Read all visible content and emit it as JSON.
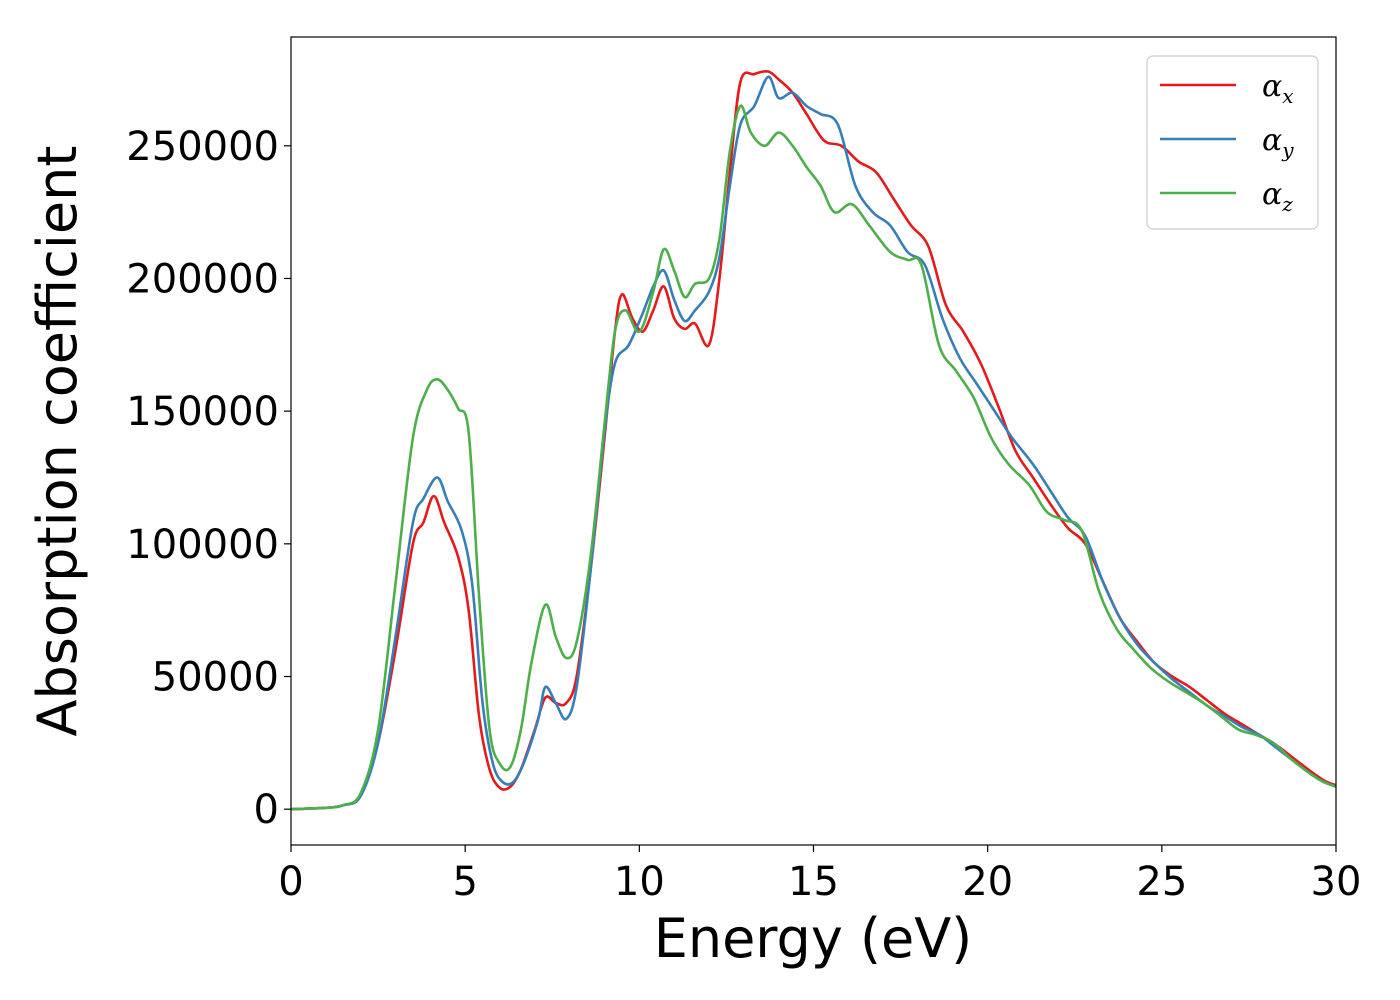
{
  "chart_data": {
    "type": "line",
    "xlabel": "Energy (eV)",
    "ylabel": "Absorption coefficient",
    "xlim": [
      0,
      30
    ],
    "ylim": [
      -13500,
      291000
    ],
    "xticks": [
      0,
      5,
      10,
      15,
      20,
      25,
      30
    ],
    "xtick_labels": [
      "0",
      "5",
      "10",
      "15",
      "20",
      "25",
      "30"
    ],
    "yticks": [
      0,
      50000,
      100000,
      150000,
      200000,
      250000
    ],
    "ytick_labels": [
      "0",
      "50000",
      "100000",
      "150000",
      "200000",
      "250000"
    ],
    "grid": false,
    "legend_position": "top-right",
    "series": [
      {
        "name": "α",
        "subscript": "x",
        "color": "#e41a1c",
        "points": [
          [
            0,
            0
          ],
          [
            1,
            500
          ],
          [
            1.5,
            1500
          ],
          [
            2,
            5000
          ],
          [
            2.5,
            25000
          ],
          [
            3,
            60000
          ],
          [
            3.5,
            100000
          ],
          [
            3.8,
            108000
          ],
          [
            4.1,
            118000
          ],
          [
            4.4,
            108000
          ],
          [
            4.8,
            95000
          ],
          [
            5.1,
            75000
          ],
          [
            5.4,
            35000
          ],
          [
            5.7,
            15000
          ],
          [
            6,
            8000
          ],
          [
            6.3,
            8500
          ],
          [
            6.6,
            15000
          ],
          [
            7,
            30000
          ],
          [
            7.3,
            42000
          ],
          [
            7.6,
            40000
          ],
          [
            7.9,
            40000
          ],
          [
            8.2,
            50000
          ],
          [
            8.6,
            90000
          ],
          [
            9,
            140000
          ],
          [
            9.3,
            180000
          ],
          [
            9.5,
            194000
          ],
          [
            9.8,
            185000
          ],
          [
            10.1,
            180000
          ],
          [
            10.4,
            188000
          ],
          [
            10.7,
            197000
          ],
          [
            11,
            185000
          ],
          [
            11.3,
            181000
          ],
          [
            11.6,
            183000
          ],
          [
            12,
            175000
          ],
          [
            12.3,
            200000
          ],
          [
            12.6,
            240000
          ],
          [
            12.9,
            274000
          ],
          [
            13.3,
            277000
          ],
          [
            13.7,
            278000
          ],
          [
            14,
            275000
          ],
          [
            14.4,
            270000
          ],
          [
            14.8,
            262000
          ],
          [
            15.3,
            252000
          ],
          [
            15.8,
            250000
          ],
          [
            16.3,
            244000
          ],
          [
            16.8,
            240000
          ],
          [
            17.3,
            230000
          ],
          [
            17.8,
            220000
          ],
          [
            18.3,
            212000
          ],
          [
            18.8,
            190000
          ],
          [
            19.3,
            180000
          ],
          [
            19.8,
            168000
          ],
          [
            20.3,
            152000
          ],
          [
            20.8,
            135000
          ],
          [
            21.3,
            125000
          ],
          [
            21.8,
            115000
          ],
          [
            22.3,
            106000
          ],
          [
            22.8,
            100000
          ],
          [
            23.3,
            86000
          ],
          [
            23.8,
            72000
          ],
          [
            24.3,
            63000
          ],
          [
            24.8,
            55000
          ],
          [
            25.3,
            50000
          ],
          [
            25.8,
            46000
          ],
          [
            26.3,
            41000
          ],
          [
            26.8,
            36000
          ],
          [
            27.3,
            32000
          ],
          [
            27.8,
            28000
          ],
          [
            28.3,
            24000
          ],
          [
            28.8,
            19000
          ],
          [
            29.3,
            14000
          ],
          [
            29.7,
            10500
          ],
          [
            30,
            9000
          ]
        ]
      },
      {
        "name": "α",
        "subscript": "y",
        "color": "#377eb8",
        "points": [
          [
            0,
            0
          ],
          [
            1,
            500
          ],
          [
            1.5,
            1500
          ],
          [
            2,
            5000
          ],
          [
            2.5,
            25000
          ],
          [
            3,
            65000
          ],
          [
            3.5,
            108000
          ],
          [
            3.8,
            117000
          ],
          [
            4.2,
            125000
          ],
          [
            4.5,
            116000
          ],
          [
            4.9,
            105000
          ],
          [
            5.2,
            85000
          ],
          [
            5.5,
            40000
          ],
          [
            5.8,
            17000
          ],
          [
            6.1,
            10000
          ],
          [
            6.4,
            10500
          ],
          [
            6.7,
            18000
          ],
          [
            7.1,
            34000
          ],
          [
            7.3,
            46000
          ],
          [
            7.6,
            40000
          ],
          [
            7.9,
            34000
          ],
          [
            8.2,
            46000
          ],
          [
            8.6,
            90000
          ],
          [
            9,
            142000
          ],
          [
            9.3,
            168000
          ],
          [
            9.7,
            175000
          ],
          [
            10.1,
            187000
          ],
          [
            10.4,
            197000
          ],
          [
            10.7,
            203000
          ],
          [
            11,
            192000
          ],
          [
            11.3,
            184000
          ],
          [
            11.6,
            188000
          ],
          [
            12,
            195000
          ],
          [
            12.3,
            208000
          ],
          [
            12.6,
            235000
          ],
          [
            12.9,
            258000
          ],
          [
            13.3,
            265000
          ],
          [
            13.7,
            276000
          ],
          [
            14,
            268000
          ],
          [
            14.4,
            270000
          ],
          [
            14.8,
            265000
          ],
          [
            15.2,
            262000
          ],
          [
            15.7,
            258000
          ],
          [
            16.2,
            235000
          ],
          [
            16.7,
            225000
          ],
          [
            17.2,
            220000
          ],
          [
            17.7,
            210000
          ],
          [
            18.2,
            205000
          ],
          [
            18.7,
            185000
          ],
          [
            19.2,
            170000
          ],
          [
            19.7,
            160000
          ],
          [
            20.2,
            150000
          ],
          [
            20.7,
            140000
          ],
          [
            21.3,
            130000
          ],
          [
            21.8,
            120000
          ],
          [
            22.3,
            110000
          ],
          [
            22.8,
            103000
          ],
          [
            23.3,
            86000
          ],
          [
            23.8,
            72000
          ],
          [
            24.3,
            62000
          ],
          [
            24.8,
            55000
          ],
          [
            25.3,
            49000
          ],
          [
            25.8,
            44000
          ],
          [
            26.3,
            39000
          ],
          [
            26.8,
            35000
          ],
          [
            27.3,
            31000
          ],
          [
            27.8,
            28000
          ],
          [
            28.3,
            23000
          ],
          [
            28.8,
            18000
          ],
          [
            29.3,
            13000
          ],
          [
            29.7,
            10000
          ],
          [
            30,
            8500
          ]
        ]
      },
      {
        "name": "α",
        "subscript": "z",
        "color": "#4daf4a",
        "points": [
          [
            0,
            0
          ],
          [
            1,
            500
          ],
          [
            1.5,
            1500
          ],
          [
            2,
            6000
          ],
          [
            2.5,
            30000
          ],
          [
            3,
            85000
          ],
          [
            3.5,
            140000
          ],
          [
            3.9,
            158000
          ],
          [
            4.2,
            162000
          ],
          [
            4.5,
            158000
          ],
          [
            4.8,
            151000
          ],
          [
            5.1,
            142000
          ],
          [
            5.4,
            80000
          ],
          [
            5.7,
            30000
          ],
          [
            6,
            17000
          ],
          [
            6.3,
            16000
          ],
          [
            6.6,
            30000
          ],
          [
            6.9,
            55000
          ],
          [
            7.3,
            77000
          ],
          [
            7.6,
            65000
          ],
          [
            7.9,
            57000
          ],
          [
            8.2,
            63000
          ],
          [
            8.6,
            95000
          ],
          [
            9,
            145000
          ],
          [
            9.3,
            180000
          ],
          [
            9.6,
            188000
          ],
          [
            10,
            180000
          ],
          [
            10.4,
            195000
          ],
          [
            10.7,
            211000
          ],
          [
            11,
            203000
          ],
          [
            11.3,
            193000
          ],
          [
            11.6,
            198000
          ],
          [
            12,
            200000
          ],
          [
            12.3,
            215000
          ],
          [
            12.6,
            248000
          ],
          [
            12.9,
            265000
          ],
          [
            13.2,
            255000
          ],
          [
            13.6,
            250000
          ],
          [
            14,
            255000
          ],
          [
            14.4,
            250000
          ],
          [
            14.8,
            242000
          ],
          [
            15.2,
            235000
          ],
          [
            15.6,
            225000
          ],
          [
            16.1,
            228000
          ],
          [
            16.6,
            220000
          ],
          [
            17.2,
            210000
          ],
          [
            17.7,
            207000
          ],
          [
            18.1,
            205000
          ],
          [
            18.6,
            175000
          ],
          [
            19.1,
            165000
          ],
          [
            19.6,
            155000
          ],
          [
            20.1,
            140000
          ],
          [
            20.6,
            130000
          ],
          [
            21.2,
            122000
          ],
          [
            21.7,
            112000
          ],
          [
            22.2,
            109000
          ],
          [
            22.7,
            105000
          ],
          [
            23.2,
            82000
          ],
          [
            23.7,
            68000
          ],
          [
            24.2,
            60000
          ],
          [
            24.7,
            53000
          ],
          [
            25.2,
            48000
          ],
          [
            25.7,
            44000
          ],
          [
            26.2,
            40000
          ],
          [
            26.7,
            35000
          ],
          [
            27.2,
            30000
          ],
          [
            27.7,
            28000
          ],
          [
            28.2,
            25000
          ],
          [
            28.7,
            19000
          ],
          [
            29.2,
            14000
          ],
          [
            29.6,
            10500
          ],
          [
            30,
            8500
          ]
        ]
      }
    ]
  }
}
